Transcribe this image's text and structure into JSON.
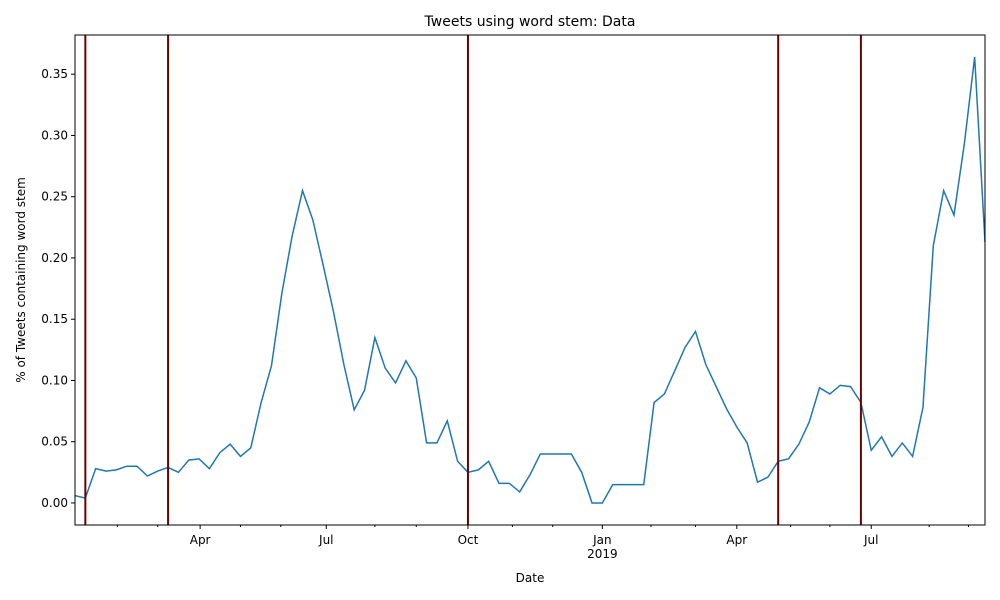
{
  "chart_data": {
    "type": "line",
    "title": "Tweets using word stem: Data",
    "x_label": "Date",
    "y_label": "% of Tweets containing word stem",
    "x": [
      0,
      1,
      2,
      3,
      4,
      5,
      6,
      7,
      8,
      9,
      10,
      11,
      12,
      13,
      14,
      15,
      16,
      17,
      18,
      19,
      20,
      21,
      22,
      23,
      24,
      25,
      26,
      27,
      28,
      29,
      30,
      31,
      32,
      33,
      34,
      35,
      36,
      37,
      38,
      39,
      40,
      41,
      42,
      43,
      44,
      45,
      46,
      47,
      48,
      49,
      50,
      51,
      52,
      53,
      54,
      55,
      56,
      57,
      58,
      59,
      60,
      61,
      62,
      63,
      64,
      65,
      66,
      67,
      68,
      69,
      70,
      71,
      72,
      73,
      74,
      75,
      76,
      77,
      78,
      79,
      80,
      81,
      82,
      83,
      84,
      85,
      86,
      87,
      88
    ],
    "series": [
      {
        "color": "#1f77b4",
        "values": [
          0.006,
          0.004,
          0.028,
          0.026,
          0.027,
          0.03,
          0.03,
          0.022,
          0.026,
          0.029,
          0.025,
          0.035,
          0.036,
          0.028,
          0.041,
          0.048,
          0.038,
          0.045,
          0.082,
          0.112,
          0.171,
          0.218,
          0.255,
          0.231,
          0.194,
          0.156,
          0.113,
          0.076,
          0.092,
          0.135,
          0.11,
          0.098,
          0.116,
          0.102,
          0.049,
          0.049,
          0.067,
          0.034,
          0.025,
          0.027,
          0.034,
          0.016,
          0.016,
          0.009,
          0.023,
          0.04,
          0.04,
          0.04,
          0.04,
          0.025,
          0,
          0,
          0.015,
          0.015,
          0.015,
          0.015,
          0.082,
          0.089,
          0.108,
          0.127,
          0.14,
          0.113,
          0.095,
          0.077,
          0.062,
          0.049,
          0.017,
          0.021,
          0.034,
          0.036,
          0.048,
          0.066,
          0.094,
          0.089,
          0.096,
          0.095,
          0.082,
          0.043,
          0.054,
          0.038,
          0.049,
          0.038,
          0.078,
          0.21,
          0.255,
          0.235,
          0.293,
          0.364,
          0.213
        ]
      }
    ],
    "xlim": [
      0,
      88
    ],
    "xticks": [
      {
        "value": 12.1,
        "label": "Apr"
      },
      {
        "value": 24.3,
        "label": "Jul"
      },
      {
        "value": 38,
        "label": "Oct"
      },
      {
        "value": 51,
        "label": "Jan",
        "sublabel": "2019"
      },
      {
        "value": 64,
        "label": "Apr"
      },
      {
        "value": 77,
        "label": "Jul"
      }
    ],
    "xminorticks": [
      4.1,
      8,
      16,
      19.9,
      29,
      33,
      42.3,
      46.2,
      55.7,
      60,
      69.2,
      73,
      82.6,
      86.4
    ],
    "ylim": [
      -0.018,
      0.382
    ],
    "yticks": [
      {
        "value": 0,
        "label": "0.00"
      },
      {
        "value": 0.05,
        "label": "0.05"
      },
      {
        "value": 0.1,
        "label": "0.10"
      },
      {
        "value": 0.15,
        "label": "0.15"
      },
      {
        "value": 0.2,
        "label": "0.20"
      },
      {
        "value": 0.25,
        "label": "0.25"
      },
      {
        "value": 0.3,
        "label": "0.30"
      },
      {
        "value": 0.35,
        "label": "0.35"
      }
    ],
    "vlines": [
      1,
      9,
      38,
      68,
      76
    ],
    "vline_color": "#6b0000"
  }
}
